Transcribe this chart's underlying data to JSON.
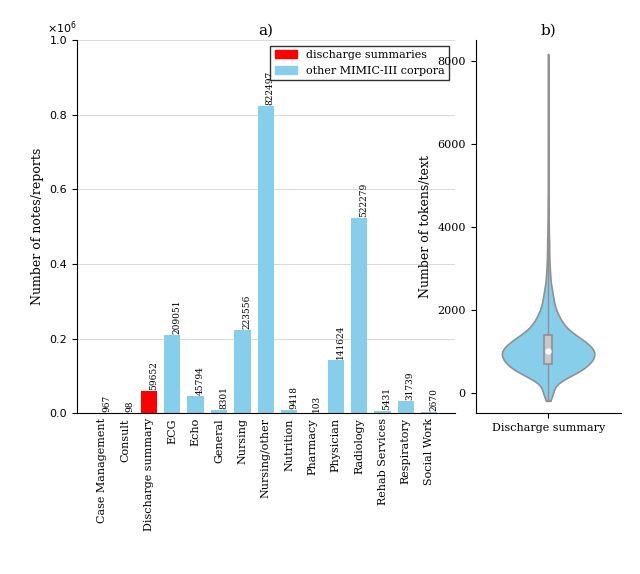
{
  "categories": [
    "Case Management",
    "Consult",
    "Discharge summary",
    "ECG",
    "Echo",
    "General",
    "Nursing",
    "Nursing/other",
    "Nutrition",
    "Pharmacy",
    "Physician",
    "Radiology",
    "Rehab Services",
    "Respiratory",
    "Social Work"
  ],
  "values": [
    967,
    98,
    59652,
    209051,
    45794,
    8301,
    223556,
    822497,
    9418,
    103,
    141624,
    522279,
    5431,
    31739,
    2670
  ],
  "colors": [
    "#87CEEB",
    "#87CEEB",
    "#FF0000",
    "#87CEEB",
    "#87CEEB",
    "#87CEEB",
    "#87CEEB",
    "#87CEEB",
    "#87CEEB",
    "#87CEEB",
    "#87CEEB",
    "#87CEEB",
    "#87CEEB",
    "#87CEEB",
    "#87CEEB"
  ],
  "ylabel_left": "Number of notes/reports",
  "ylabel_right": "Number of tokens/text",
  "xlabel_right": "Discharge summary",
  "title_left": "a)",
  "title_right": "b)",
  "ylim_left": [
    0,
    1000000
  ],
  "yticks_left": [
    0.0,
    0.2,
    0.4,
    0.6,
    0.8,
    1.0
  ],
  "legend_labels": [
    "discharge summaries",
    "other MIMIC-III corpora"
  ],
  "violin_face_color": "#87CEEB",
  "violin_edge_color": "#909090",
  "yticks_right": [
    0,
    2000,
    4000,
    6000,
    8000
  ],
  "ylim_right": [
    -500,
    8500
  ],
  "annotation_fontsize": 6.5,
  "tick_fontsize": 8,
  "label_fontsize": 9,
  "legend_fontsize": 8
}
